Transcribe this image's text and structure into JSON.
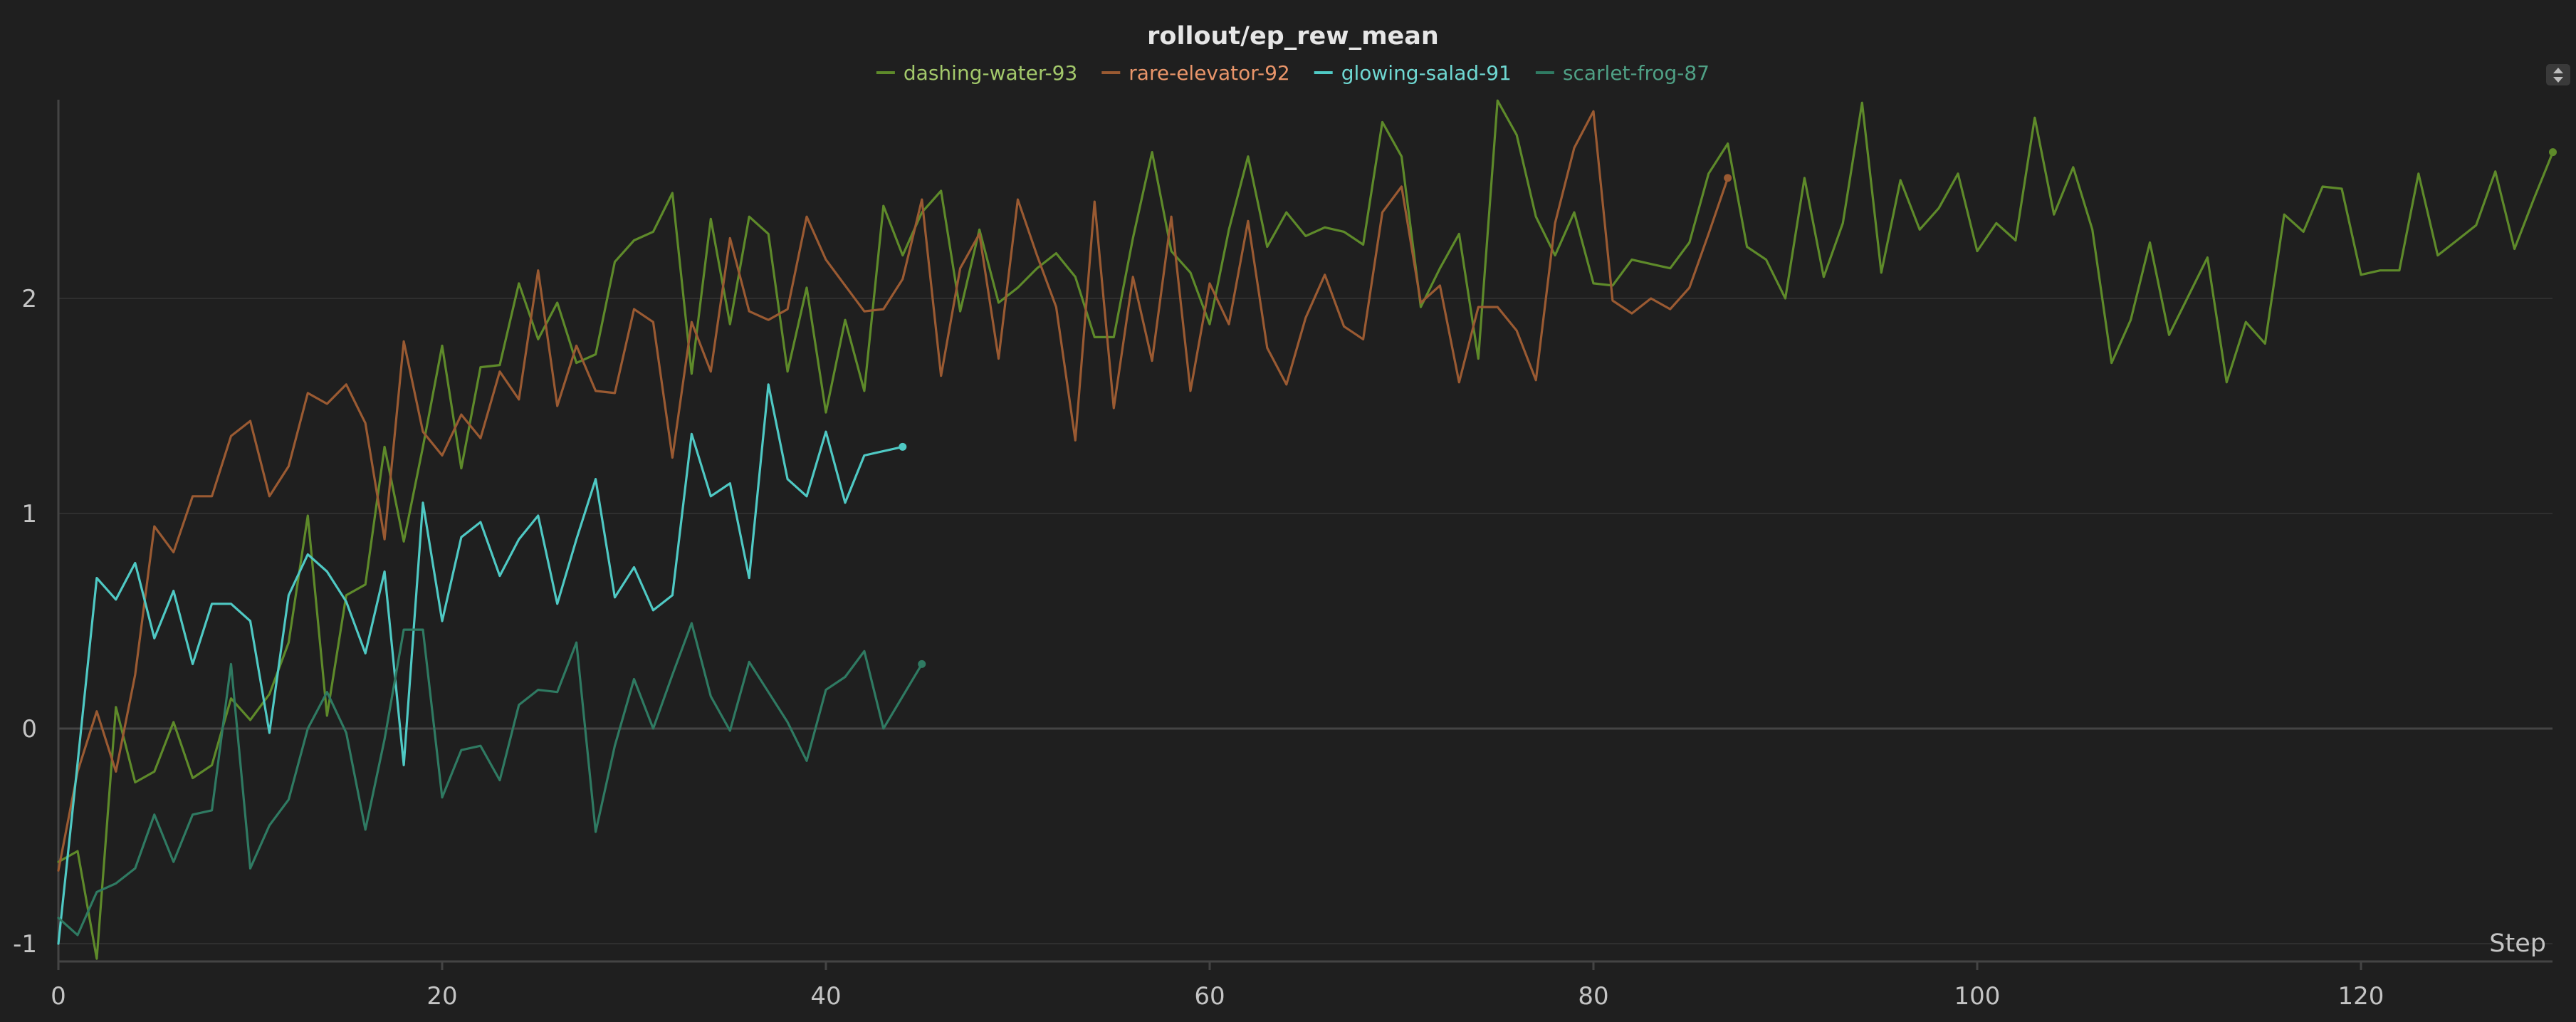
{
  "chart_data": {
    "type": "line",
    "title": "rollout/ep_rew_mean",
    "xlabel": "Step",
    "ylabel": "",
    "xlim": [
      0,
      131
    ],
    "ylim": [
      -1.1,
      2.92
    ],
    "x_ticks": [
      0,
      20,
      40,
      60,
      80,
      100,
      120
    ],
    "y_ticks": [
      -1,
      0,
      1,
      2
    ],
    "grid": true,
    "legend_position": "top-center",
    "series": [
      {
        "name": "dashing-water-93",
        "color": "#5e8a2a",
        "label_color": "#a3c96b",
        "values": [
          -0.62,
          -0.57,
          -1.07,
          0.1,
          -0.25,
          -0.2,
          0.03,
          -0.23,
          -0.17,
          0.14,
          0.04,
          0.16,
          0.4,
          0.99,
          0.06,
          0.62,
          0.67,
          1.31,
          0.87,
          1.31,
          1.78,
          1.21,
          1.68,
          1.69,
          2.07,
          1.81,
          1.98,
          1.7,
          1.74,
          2.17,
          2.27,
          2.31,
          2.49,
          1.65,
          2.37,
          1.88,
          2.38,
          2.3,
          1.66,
          2.05,
          1.47,
          1.9,
          1.57,
          2.43,
          2.2,
          2.4,
          2.5,
          1.94,
          2.32,
          1.98,
          2.05,
          2.14,
          2.21,
          2.1,
          1.82,
          1.82,
          2.28,
          2.68,
          2.22,
          2.12,
          1.88,
          2.32,
          2.66,
          2.24,
          2.4,
          2.29,
          2.33,
          2.31,
          2.25,
          2.82,
          2.66,
          1.96,
          2.14,
          2.3,
          1.72,
          2.92,
          2.76,
          2.38,
          2.2,
          2.4,
          2.07,
          2.06,
          2.18,
          2.16,
          2.14,
          2.26,
          2.58,
          2.72,
          2.24,
          2.18,
          2.0,
          2.56,
          2.1,
          2.35,
          2.91,
          2.12,
          2.55,
          2.32,
          2.42,
          2.58,
          2.22,
          2.35,
          2.27,
          2.84,
          2.39,
          2.61,
          2.32,
          1.7,
          1.9,
          2.26,
          1.83,
          2.01,
          2.19,
          1.61,
          1.89,
          1.79,
          2.39,
          2.31,
          2.52,
          2.51,
          2.11,
          2.13,
          2.13,
          2.58,
          2.2,
          2.27,
          2.34,
          2.59,
          2.23,
          2.46,
          2.68
        ]
      },
      {
        "name": "rare-elevator-92",
        "color": "#9a5a32",
        "label_color": "#e9956a",
        "values": [
          -0.66,
          -0.2,
          0.08,
          -0.2,
          0.25,
          0.94,
          0.82,
          1.08,
          1.08,
          1.36,
          1.43,
          1.08,
          1.22,
          1.56,
          1.51,
          1.6,
          1.42,
          0.88,
          1.8,
          1.38,
          1.27,
          1.46,
          1.35,
          1.66,
          1.53,
          2.13,
          1.5,
          1.78,
          1.57,
          1.56,
          1.95,
          1.89,
          1.26,
          1.89,
          1.66,
          2.28,
          1.94,
          1.9,
          1.95,
          2.38,
          2.18,
          2.06,
          1.94,
          1.95,
          2.09,
          2.46,
          1.64,
          2.14,
          2.3,
          1.72,
          2.46,
          2.2,
          1.96,
          1.34,
          2.45,
          1.49,
          2.1,
          1.71,
          2.38,
          1.57,
          2.07,
          1.88,
          2.36,
          1.77,
          1.6,
          1.91,
          2.11,
          1.87,
          1.81,
          2.4,
          2.52,
          1.98,
          2.06,
          1.61,
          1.96,
          1.96,
          1.85,
          1.62,
          2.35,
          2.7,
          2.87,
          1.99,
          1.93,
          2.0,
          1.95,
          2.05,
          2.3,
          2.56
        ]
      },
      {
        "name": "glowing-salad-91",
        "color": "#4fc9c4",
        "label_color": "#6fd8d2",
        "values": [
          -1.0,
          -0.16,
          0.7,
          0.6,
          0.77,
          0.42,
          0.64,
          0.3,
          0.58,
          0.58,
          0.5,
          -0.02,
          0.62,
          0.81,
          0.73,
          0.59,
          0.35,
          0.73,
          -0.17,
          1.05,
          0.5,
          0.89,
          0.96,
          0.71,
          0.88,
          0.99,
          0.58,
          0.88,
          1.16,
          0.61,
          0.75,
          0.55,
          0.62,
          1.37,
          1.08,
          1.14,
          0.7,
          1.6,
          1.16,
          1.08,
          1.38,
          1.05,
          1.27,
          1.29,
          1.31
        ]
      },
      {
        "name": "scarlet-frog-87",
        "color": "#2f7a62",
        "label_color": "#4fa085",
        "values": [
          -0.88,
          -0.96,
          -0.76,
          -0.72,
          -0.65,
          -0.4,
          -0.62,
          -0.4,
          -0.38,
          0.3,
          -0.65,
          -0.45,
          -0.33,
          0.0,
          0.17,
          -0.02,
          -0.47,
          -0.05,
          0.46,
          0.46,
          -0.32,
          -0.1,
          -0.08,
          -0.24,
          0.11,
          0.18,
          0.17,
          0.4,
          -0.48,
          -0.08,
          0.23,
          0.0,
          0.25,
          0.49,
          0.15,
          -0.01,
          0.31,
          0.17,
          0.03,
          -0.15,
          0.18,
          0.24,
          0.36,
          0.0,
          0.15,
          0.3
        ]
      }
    ]
  },
  "controls": {
    "expand_icon": "updown-arrows-icon"
  }
}
